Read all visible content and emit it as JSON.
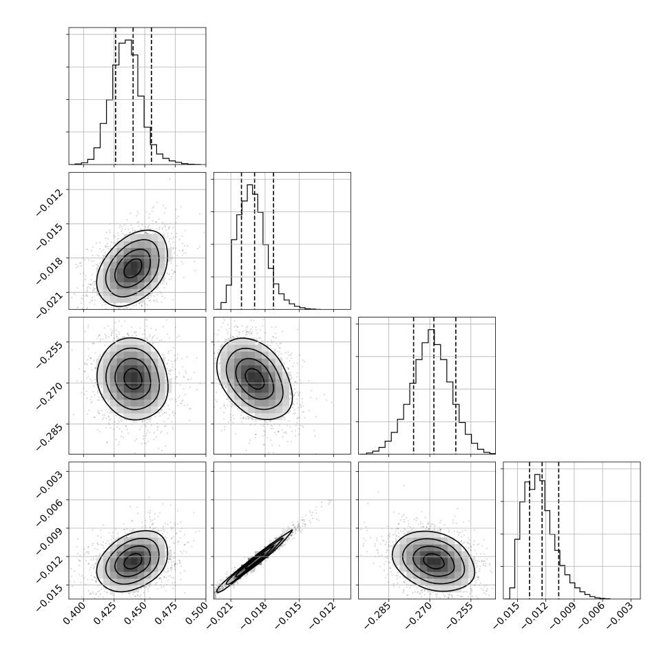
{
  "chart_data": {
    "type": "corner",
    "grid": true,
    "xlabels": [],
    "parameters": [
      {
        "range": [
          0.388,
          0.5
        ],
        "ticks": [
          0.4,
          0.425,
          0.45,
          0.475,
          0.5
        ],
        "tick_labels": [
          "0.400",
          "0.425",
          "0.450",
          "0.475",
          "0.500"
        ],
        "quantiles": [
          0.4262,
          0.4405,
          0.4555
        ],
        "histogram": {
          "edges": [
            0.388,
            0.39312,
            0.39824,
            0.40336,
            0.40848,
            0.4136,
            0.41872,
            0.42384,
            0.42896,
            0.43408,
            0.4392,
            0.44432,
            0.44944,
            0.45456,
            0.45968,
            0.4648,
            0.46992,
            0.47504,
            0.48016,
            0.48528,
            0.4904,
            0.49552
          ],
          "counts": [
            0,
            5,
            15,
            42,
            135,
            330,
            520,
            800,
            975,
            1000,
            880,
            550,
            300,
            160,
            85,
            50,
            30,
            18,
            8,
            3,
            1
          ]
        }
      },
      {
        "range": [
          -0.0225,
          -0.0105
        ],
        "ticks": [
          -0.021,
          -0.018,
          -0.015,
          -0.012
        ],
        "tick_labels": [
          "−0.021",
          "−0.018",
          "−0.015",
          "−0.012"
        ],
        "quantiles": [
          -0.02007,
          -0.01892,
          -0.01726
        ],
        "histogram": {
          "edges": [
            -0.02232,
            -0.02186,
            -0.0214,
            -0.02094,
            -0.02048,
            -0.02002,
            -0.01956,
            -0.0191,
            -0.01864,
            -0.01818,
            -0.01772,
            -0.01726,
            -0.0168,
            -0.01634,
            -0.01588,
            -0.01542,
            -0.01496,
            -0.0145,
            -0.01404,
            -0.01358,
            -0.01312
          ],
          "counts": [
            0,
            55,
            195,
            560,
            760,
            870,
            1000,
            925,
            780,
            520,
            330,
            205,
            125,
            75,
            45,
            25,
            13,
            5,
            2,
            0
          ]
        }
      },
      {
        "range": [
          -0.296,
          -0.246
        ],
        "ticks": [
          -0.285,
          -0.27,
          -0.255
        ],
        "tick_labels": [
          "−0.285",
          "−0.270",
          "−0.255"
        ],
        "quantiles": [
          -0.2759,
          -0.2685,
          -0.2605
        ],
        "histogram": {
          "edges": [
            -0.2953,
            -0.29305,
            -0.2908,
            -0.28855,
            -0.2863,
            -0.28405,
            -0.2818,
            -0.27955,
            -0.2773,
            -0.27505,
            -0.2728,
            -0.27055,
            -0.2683,
            -0.26605,
            -0.2638,
            -0.26155,
            -0.2593,
            -0.25705,
            -0.2548,
            -0.25255,
            -0.2503,
            -0.24805,
            -0.2458
          ],
          "counts": [
            0,
            10,
            25,
            55,
            105,
            175,
            280,
            400,
            570,
            760,
            895,
            1000,
            880,
            760,
            580,
            400,
            255,
            160,
            88,
            40,
            15,
            5
          ]
        }
      },
      {
        "range": [
          -0.0165,
          -0.002
        ],
        "ticks": [
          -0.015,
          -0.012,
          -0.009,
          -0.006,
          -0.003
        ],
        "tick_labels": [
          "−0.015",
          "−0.012",
          "−0.009",
          "−0.006",
          "−0.003"
        ],
        "quantiles": [
          -0.01373,
          -0.0124,
          -0.01064
        ],
        "histogram": {
          "edges": [
            -0.01635,
            -0.01582,
            -0.01529,
            -0.01476,
            -0.01423,
            -0.0137,
            -0.01317,
            -0.01264,
            -0.01211,
            -0.01158,
            -0.01105,
            -0.01052,
            -0.00999,
            -0.00946,
            -0.00893,
            -0.0084,
            -0.00787,
            -0.00734,
            -0.00681,
            -0.00628,
            -0.00575,
            -0.00522
          ],
          "counts": [
            0,
            90,
            480,
            780,
            940,
            880,
            1000,
            950,
            710,
            520,
            390,
            270,
            195,
            130,
            90,
            58,
            36,
            20,
            10,
            5,
            2
          ]
        }
      }
    ],
    "pairs": [
      {
        "x_param": 0,
        "y_param": 1,
        "mean": [
          0.4405,
          -0.0189
        ],
        "sd": [
          0.0145,
          0.00165
        ],
        "corr": 0.35
      },
      {
        "x_param": 0,
        "y_param": 2,
        "mean": [
          0.4405,
          -0.2685
        ],
        "sd": [
          0.0145,
          0.0075
        ],
        "corr": -0.12
      },
      {
        "x_param": 1,
        "y_param": 2,
        "mean": [
          -0.0189,
          -0.2685
        ],
        "sd": [
          0.00165,
          0.0075
        ],
        "corr": -0.38
      },
      {
        "x_param": 0,
        "y_param": 3,
        "mean": [
          0.4405,
          -0.0125
        ],
        "sd": [
          0.0145,
          0.0016
        ],
        "corr": 0.3
      },
      {
        "x_param": 1,
        "y_param": 3,
        "mean": [
          -0.0189,
          -0.0125
        ],
        "sd": [
          0.00165,
          0.0016
        ],
        "corr": 0.985
      },
      {
        "x_param": 2,
        "y_param": 3,
        "mean": [
          -0.2685,
          -0.0125
        ],
        "sd": [
          0.0075,
          0.0016
        ],
        "corr": -0.28
      }
    ],
    "contour_levels_sigma": [
      0.5,
      1.0,
      1.5,
      2.0
    ],
    "colors": {
      "line": "#000000",
      "scatter": "#000000",
      "grid": "#b0b0b0",
      "frame": "#000000"
    }
  }
}
